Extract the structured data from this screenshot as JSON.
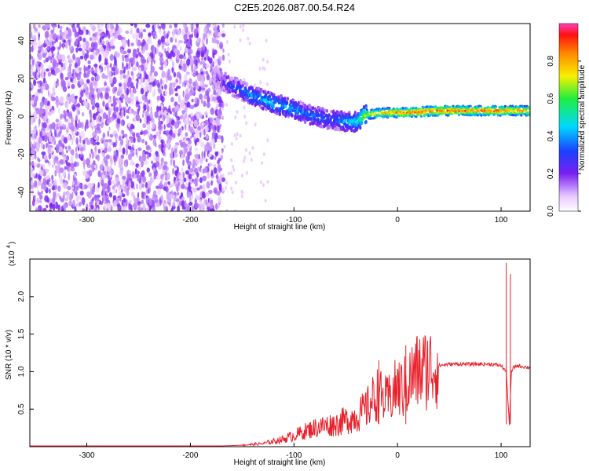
{
  "title": "C2E5.2026.087.00.54.R24",
  "chart_data": [
    {
      "type": "heatmap",
      "xlabel": "Height of straight line (km)",
      "ylabel": "Frequency (Hz)",
      "xlim": [
        -355,
        128
      ],
      "ylim": [
        -50,
        49
      ],
      "xticks": [
        -300,
        -200,
        -100,
        0,
        100
      ],
      "yticks": [
        -40,
        -20,
        0,
        20,
        40
      ],
      "colorbar": {
        "label": "Normalized spectral amplitude",
        "range": [
          0,
          1
        ],
        "ticks": [
          0.0,
          0.2,
          0.4,
          0.6,
          0.8
        ],
        "tick_labels": [
          "0.0",
          "0.2",
          "0.4",
          "0.6",
          "0.8"
        ]
      },
      "ridge": {
        "x": [
          -175,
          -160,
          -140,
          -120,
          -100,
          -80,
          -60,
          -40,
          -30,
          -10,
          10,
          40,
          70,
          100,
          128
        ],
        "freq": [
          20,
          16,
          11,
          7,
          4,
          0,
          -2,
          -3,
          1,
          2,
          2,
          3,
          3,
          3,
          3
        ],
        "amplitude": [
          0.15,
          0.3,
          0.4,
          0.45,
          0.4,
          0.35,
          0.35,
          0.5,
          0.7,
          0.85,
          0.9,
          0.9,
          0.9,
          0.88,
          0.85
        ]
      }
    },
    {
      "type": "line",
      "xlabel": "Height of straight line (km)",
      "ylabel": "SNR (10 * v/v)",
      "y_multiplier": "(x10",
      "y_multiplier_exp": "4",
      "xlim": [
        -355,
        128
      ],
      "ylim": [
        0,
        2.5
      ],
      "xticks": [
        -300,
        -200,
        -100,
        0,
        100
      ],
      "yticks": [
        0.5,
        1.0,
        1.5,
        2.0
      ],
      "ytick_labels": [
        "0.5",
        "1.0",
        "1.5",
        "2.0"
      ],
      "color": "#e8202a",
      "series": [
        {
          "x": [
            -355,
            -300,
            -250,
            -200,
            -170,
            -150,
            -130,
            -110,
            -100,
            -90,
            -80,
            -70,
            -60,
            -50,
            -40,
            -30,
            -25,
            -20,
            -15,
            -10,
            -5,
            0,
            5,
            10,
            15,
            20,
            30,
            40,
            50,
            60,
            70,
            80,
            90,
            100,
            105,
            108,
            110,
            112,
            115,
            120,
            128
          ],
          "values": [
            0.01,
            0.01,
            0.01,
            0.01,
            0.01,
            0.02,
            0.04,
            0.1,
            0.15,
            0.2,
            0.25,
            0.28,
            0.3,
            0.35,
            0.4,
            0.5,
            0.6,
            0.7,
            0.65,
            0.6,
            0.7,
            0.8,
            0.75,
            0.85,
            0.95,
            1.0,
            1.05,
            1.08,
            1.1,
            1.1,
            1.1,
            1.1,
            1.1,
            1.08,
            1.0,
            0.3,
            1.0,
            1.05,
            1.08,
            1.07,
            1.05
          ]
        }
      ],
      "annotations": [
        {
          "x": -18,
          "value": 1.15
        },
        {
          "x": 8,
          "value": 1.35
        },
        {
          "x": 105,
          "value": 2.45
        },
        {
          "x": 109,
          "value": 2.3
        }
      ]
    }
  ]
}
